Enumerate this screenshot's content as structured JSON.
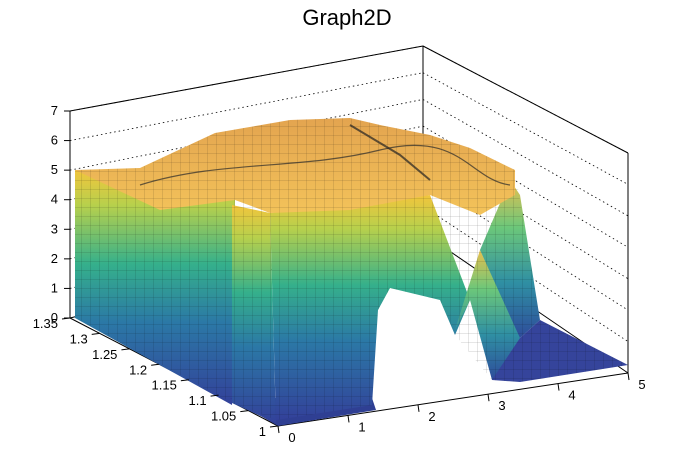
{
  "chart_data": {
    "type": "surface3d",
    "title": "Graph2D",
    "x_axis": {
      "range": [
        0,
        5
      ],
      "ticks": [
        "0",
        "1",
        "2",
        "3",
        "4",
        "5"
      ]
    },
    "y_axis": {
      "range": [
        1,
        1.35
      ],
      "ticks": [
        "1",
        "1.05",
        "1.1",
        "1.15",
        "1.2",
        "1.25",
        "1.3",
        "1.35"
      ]
    },
    "z_axis": {
      "range": [
        0,
        7
      ],
      "ticks": [
        "0",
        "1",
        "2",
        "3",
        "4",
        "5",
        "6",
        "7"
      ]
    },
    "grid": "dotted, on back and left walls",
    "colormap": "viridis-like (blue low, green mid, yellow/orange high)",
    "surface_description_points": [
      {
        "x": 0.0,
        "y": 1.0,
        "z": 0.0
      },
      {
        "x": 0.05,
        "y": 1.05,
        "z": 4.9
      },
      {
        "x": 0.5,
        "y": 1.15,
        "z": 4.9
      },
      {
        "x": 1.0,
        "y": 1.2,
        "z": 5.5
      },
      {
        "x": 1.5,
        "y": 1.25,
        "z": 5.9
      },
      {
        "x": 2.0,
        "y": 1.25,
        "z": 5.6
      },
      {
        "x": 2.5,
        "y": 1.2,
        "z": 5.0
      },
      {
        "x": 3.0,
        "y": 1.15,
        "z": 4.2
      },
      {
        "x": 3.2,
        "y": 1.1,
        "z": 0.2
      },
      {
        "x": 5.0,
        "y": 1.0,
        "z": 0.0
      }
    ],
    "colors": {
      "low": "#33419a",
      "mid": "#35b08b",
      "high": "#f5c53c",
      "top": "#e4a24c"
    }
  }
}
